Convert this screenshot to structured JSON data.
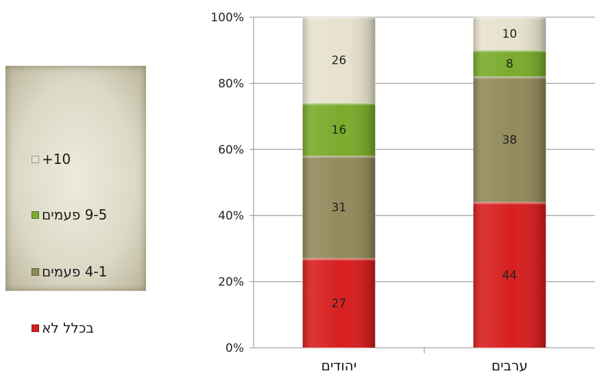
{
  "chart_data": {
    "type": "bar",
    "stacked": true,
    "percent": true,
    "categories": [
      "יהודים",
      "ערבים"
    ],
    "series": [
      {
        "name": "בכלל לא",
        "values": [
          27,
          44
        ],
        "color": "#d81f1f"
      },
      {
        "name": "4-1 פעמים",
        "values": [
          31,
          38
        ],
        "color": "#928a5c"
      },
      {
        "name": "9-5 פעמים",
        "values": [
          16,
          8
        ],
        "color": "#7aab2c"
      },
      {
        "name": "+10",
        "values": [
          26,
          10
        ],
        "color": "#e7e2cd"
      }
    ],
    "yticks": [
      "0%",
      "20%",
      "40%",
      "60%",
      "80%",
      "100%"
    ],
    "ylim": [
      0,
      100
    ],
    "grid": true,
    "legend_position": "left"
  }
}
